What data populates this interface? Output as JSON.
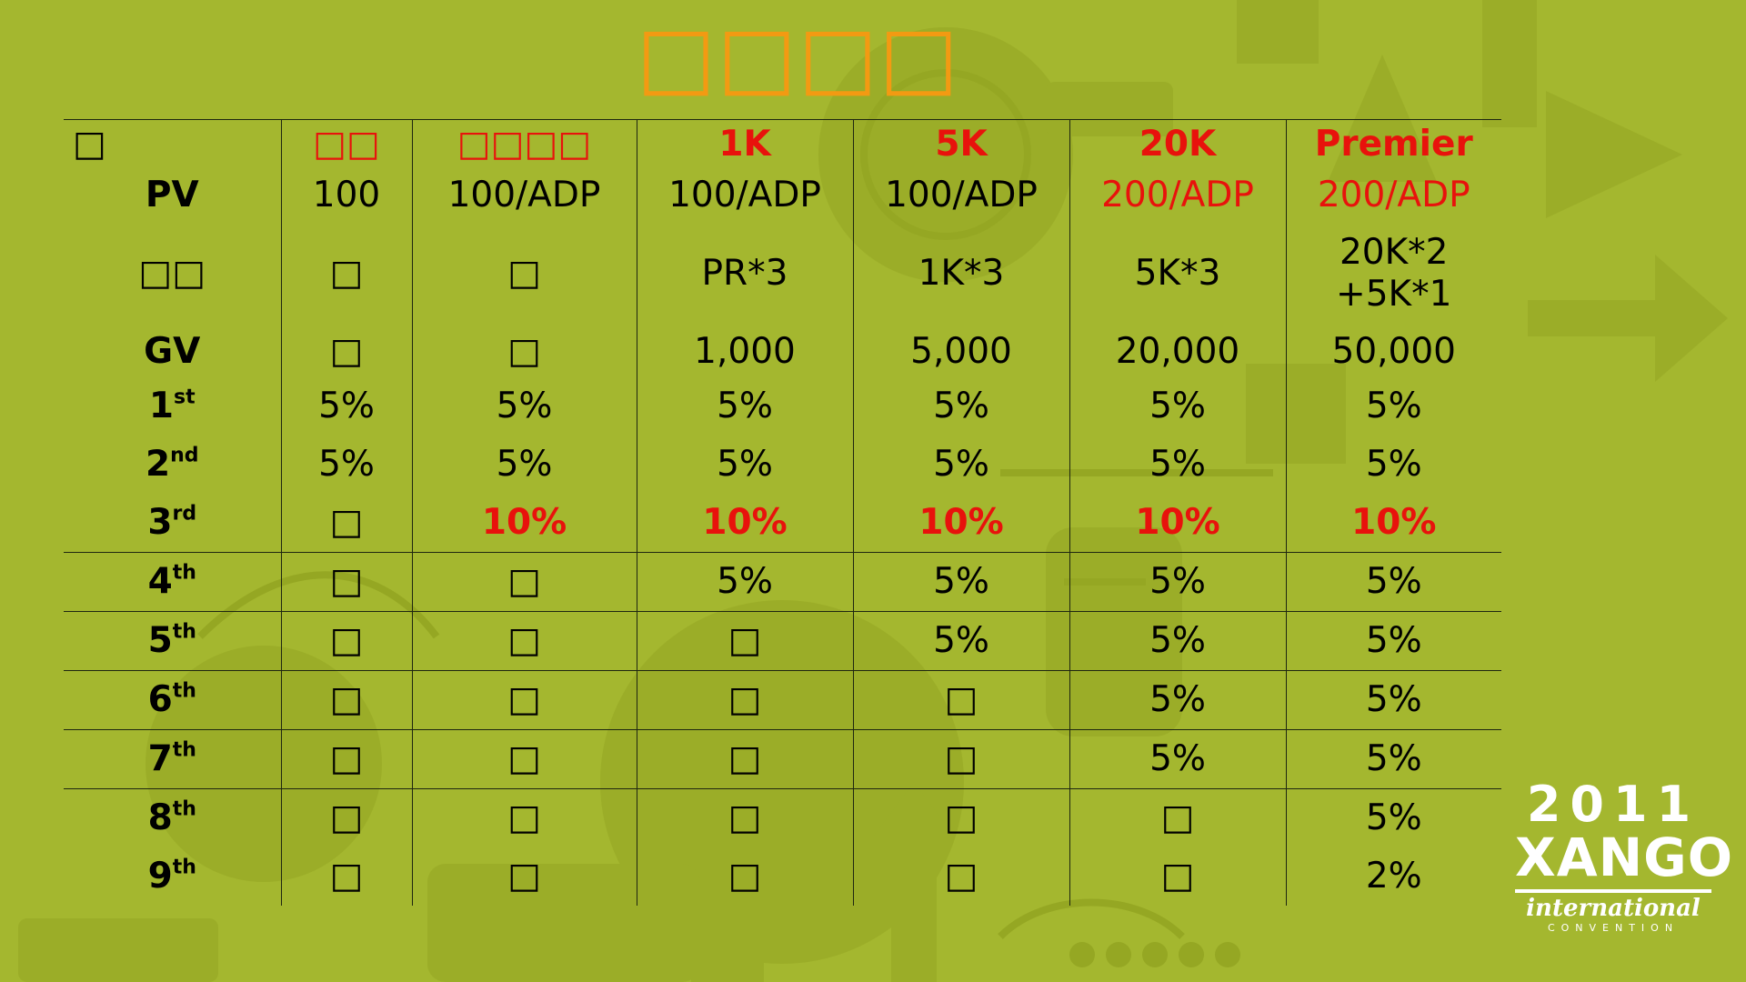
{
  "slide": {
    "title": "□□□□",
    "columns": [
      "□□",
      "□□□□",
      "1K",
      "5K",
      "20K",
      "Premier"
    ],
    "corner": "□",
    "rows": [
      {
        "label": "PV",
        "values": [
          "100",
          "100/ADP",
          "100/ADP",
          "100/ADP",
          "200/ADP",
          "200/ADP"
        ]
      },
      {
        "label": "□□",
        "values": [
          "□",
          "□",
          "PR*3",
          "1K*3",
          "5K*3",
          "20K*2\n+5K*1"
        ]
      },
      {
        "label": "GV",
        "values": [
          "□",
          "□",
          "1,000",
          "5,000",
          "20,000",
          "50,000"
        ]
      },
      {
        "label": "1",
        "sup": "st",
        "values": [
          "5%",
          "5%",
          "5%",
          "5%",
          "5%",
          "5%"
        ]
      },
      {
        "label": "2",
        "sup": "nd",
        "values": [
          "5%",
          "5%",
          "5%",
          "5%",
          "5%",
          "5%"
        ]
      },
      {
        "label": "3",
        "sup": "rd",
        "values": [
          "□",
          "10%",
          "10%",
          "10%",
          "10%",
          "10%"
        ]
      },
      {
        "label": "4",
        "sup": "th",
        "values": [
          "□",
          "□",
          "5%",
          "5%",
          "5%",
          "5%"
        ]
      },
      {
        "label": "5",
        "sup": "th",
        "values": [
          "□",
          "□",
          "□",
          "5%",
          "5%",
          "5%"
        ]
      },
      {
        "label": "6",
        "sup": "th",
        "values": [
          "□",
          "□",
          "□",
          "□",
          "5%",
          "5%"
        ]
      },
      {
        "label": "7",
        "sup": "th",
        "values": [
          "□",
          "□",
          "□",
          "□",
          "5%",
          "5%"
        ]
      },
      {
        "label": "8",
        "sup": "th",
        "values": [
          "□",
          "□",
          "□",
          "□",
          "□",
          "5%"
        ]
      },
      {
        "label": "9",
        "sup": "th",
        "values": [
          "□",
          "□",
          "□",
          "□",
          "□",
          "2%"
        ]
      }
    ]
  },
  "logo": {
    "year": "2011",
    "name": "XANGO",
    "line1": "international",
    "line2": "CONVENTION"
  },
  "colors": {
    "background": "#a4b72f",
    "title": "#f39a12",
    "highlight": "#e8120c",
    "text": "#000000"
  }
}
